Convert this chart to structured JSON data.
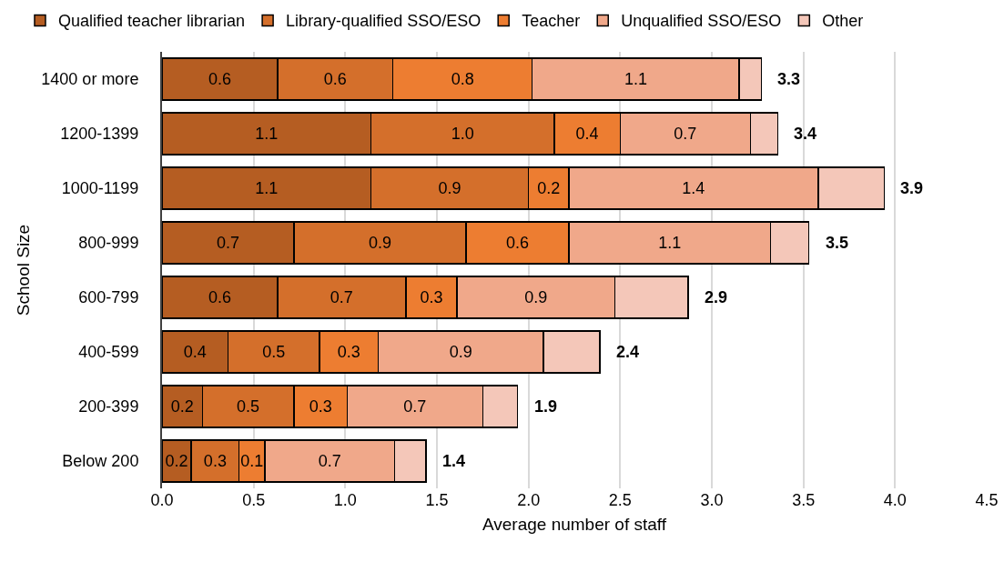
{
  "chart_data": {
    "type": "bar",
    "orientation": "horizontal",
    "stacked": true,
    "xlabel": "Average number of staff",
    "ylabel": "School Size",
    "categories": [
      "1400 or more",
      "1200-1399",
      "1000-1199",
      "800-999",
      "600-799",
      "400-599",
      "200-399",
      "Below 200"
    ],
    "series": [
      {
        "name": "Qualified teacher librarian",
        "color": "#b55d22",
        "values": [
          0.63,
          1.14,
          1.14,
          0.72,
          0.63,
          0.36,
          0.22,
          0.16
        ],
        "value_labels": [
          "0.6",
          "1.1",
          "1.1",
          "0.7",
          "0.6",
          "0.4",
          "0.2",
          "0.2"
        ]
      },
      {
        "name": "Library-qualified SSO/ESO",
        "color": "#d46f2b",
        "values": [
          0.63,
          1.0,
          0.86,
          0.94,
          0.7,
          0.5,
          0.5,
          0.26
        ],
        "value_labels": [
          "0.6",
          "1.0",
          "0.9",
          "0.9",
          "0.7",
          "0.5",
          "0.5",
          "0.3"
        ]
      },
      {
        "name": "Teacher",
        "color": "#ed7d31",
        "values": [
          0.76,
          0.36,
          0.22,
          0.56,
          0.28,
          0.32,
          0.29,
          0.14
        ],
        "value_labels": [
          "0.8",
          "0.4",
          "0.2",
          "0.6",
          "0.3",
          "0.3",
          "0.3",
          "0.1"
        ]
      },
      {
        "name": "Unqualified SSO/ESO",
        "color": "#f0a88a",
        "values": [
          1.13,
          0.71,
          1.36,
          1.1,
          0.86,
          0.9,
          0.74,
          0.71
        ],
        "value_labels": [
          "1.1",
          "0.7",
          "1.4",
          "1.1",
          "0.9",
          "0.9",
          "0.7",
          "0.7"
        ]
      },
      {
        "name": "Other",
        "color": "#f4c7b9",
        "values": [
          0.12,
          0.15,
          0.36,
          0.21,
          0.4,
          0.31,
          0.19,
          0.17
        ]
      }
    ],
    "totals": [
      "3.3",
      "3.4",
      "3.9",
      "3.5",
      "2.9",
      "2.4",
      "1.9",
      "1.4"
    ],
    "xlim": [
      0,
      4.5
    ],
    "xticks": [
      {
        "value": 0,
        "label": "0.0"
      },
      {
        "value": 0.5,
        "label": "0.5"
      },
      {
        "value": 1,
        "label": "1.0"
      },
      {
        "value": 1.5,
        "label": "1.5"
      },
      {
        "value": 2,
        "label": "2.0"
      },
      {
        "value": 2.5,
        "label": "2.5"
      },
      {
        "value": 3,
        "label": "3.0"
      },
      {
        "value": 3.5,
        "label": "3.5"
      },
      {
        "value": 4,
        "label": "4.0"
      },
      {
        "value": 4.5,
        "label": "4.5"
      }
    ],
    "grid": "x",
    "legend": "top"
  }
}
